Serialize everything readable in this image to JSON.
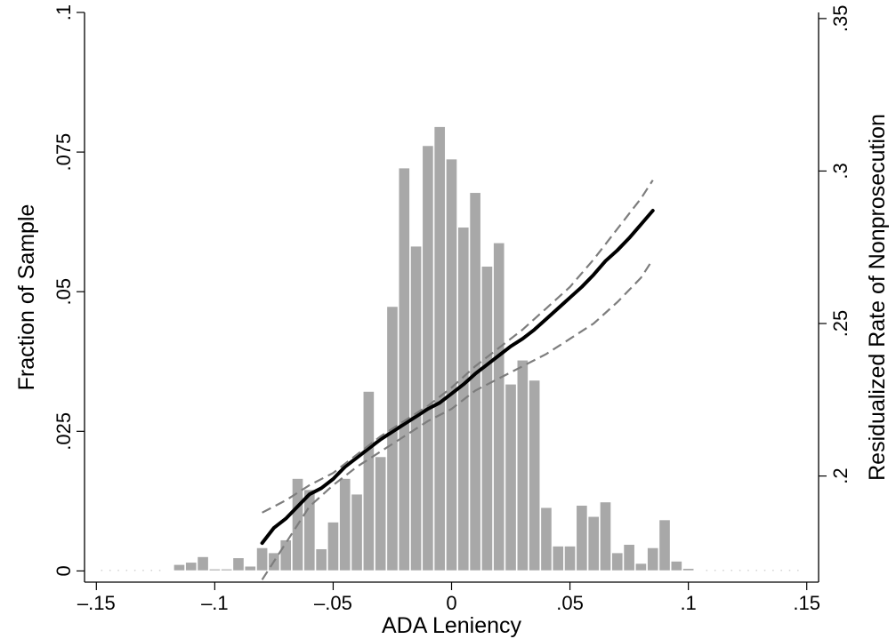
{
  "chart_data": {
    "type": "bar",
    "xlabel": "ADA Leniency",
    "ylabel": "Fraction of Sample",
    "y2label": "Residualized Rate of Nonprosecution",
    "xlim": [
      -0.155,
      0.155
    ],
    "ylim": [
      -0.002,
      0.1
    ],
    "y2lim": [
      0.1652,
      0.352
    ],
    "xticks": [
      {
        "value": -0.15,
        "label": "–.15"
      },
      {
        "value": -0.1,
        "label": "–.1"
      },
      {
        "value": -0.05,
        "label": "–.05"
      },
      {
        "value": 0,
        "label": "0"
      },
      {
        "value": 0.05,
        "label": ".05"
      },
      {
        "value": 0.1,
        "label": ".1"
      },
      {
        "value": 0.15,
        "label": ".15"
      }
    ],
    "yticks": [
      {
        "value": 0,
        "label": "0"
      },
      {
        "value": 0.025,
        "label": ".025"
      },
      {
        "value": 0.05,
        "label": ".05"
      },
      {
        "value": 0.075,
        "label": ".075"
      },
      {
        "value": 0.1,
        "label": ".1"
      }
    ],
    "y2ticks": [
      {
        "value": 0.2,
        "label": ".2"
      },
      {
        "value": 0.25,
        "label": ".25"
      },
      {
        "value": 0.3,
        "label": ".3"
      },
      {
        "value": 0.35,
        "label": ".35"
      }
    ],
    "grid": false,
    "histogram": {
      "bin_width": 0.0049,
      "x": [
        -0.115,
        -0.11,
        -0.105,
        -0.1,
        -0.095,
        -0.09,
        -0.085,
        -0.08,
        -0.075,
        -0.07,
        -0.065,
        -0.06,
        -0.055,
        -0.05,
        -0.045,
        -0.04,
        -0.035,
        -0.03,
        -0.025,
        -0.02,
        -0.015,
        -0.01,
        -0.005,
        0,
        0.005,
        0.01,
        0.015,
        0.02,
        0.025,
        0.03,
        0.035,
        0.04,
        0.045,
        0.05,
        0.055,
        0.06,
        0.065,
        0.07,
        0.075,
        0.08,
        0.085,
        0.09,
        0.095,
        0.1
      ],
      "values": [
        0.0012,
        0.0016,
        0.0026,
        0.0004,
        0.0004,
        0.0024,
        0.0009,
        0.0042,
        0.0033,
        0.0056,
        0.0166,
        0.0146,
        0.004,
        0.0088,
        0.0166,
        0.0138,
        0.0322,
        0.0205,
        0.0474,
        0.0722,
        0.0582,
        0.0762,
        0.0796,
        0.0738,
        0.0616,
        0.0678,
        0.0546,
        0.0588,
        0.0335,
        0.0378,
        0.0342,
        0.0114,
        0.0045,
        0.0045,
        0.0118,
        0.0098,
        0.0124,
        0.0033,
        0.0048,
        0.0014,
        0.0042,
        0.0092,
        0.0018,
        0.0005
      ]
    },
    "series": [
      {
        "axis": "right",
        "style": "solid",
        "x": [
          -0.08,
          -0.075,
          -0.07,
          -0.065,
          -0.06,
          -0.055,
          -0.05,
          -0.045,
          -0.04,
          -0.035,
          -0.03,
          -0.025,
          -0.02,
          -0.015,
          -0.01,
          -0.005,
          0,
          0.005,
          0.01,
          0.015,
          0.02,
          0.025,
          0.03,
          0.035,
          0.04,
          0.045,
          0.05,
          0.055,
          0.06,
          0.065,
          0.07,
          0.075,
          0.08,
          0.085
        ],
        "values": [
          0.178,
          0.183,
          0.186,
          0.19,
          0.194,
          0.196,
          0.199,
          0.203,
          0.206,
          0.209,
          0.212,
          0.2145,
          0.217,
          0.2195,
          0.222,
          0.224,
          0.227,
          0.23,
          0.2335,
          0.2365,
          0.2395,
          0.2425,
          0.245,
          0.248,
          0.2515,
          0.255,
          0.2585,
          0.262,
          0.266,
          0.2705,
          0.274,
          0.278,
          0.2825,
          0.287
        ]
      },
      {
        "axis": "right",
        "style": "dashed",
        "x": [
          -0.08,
          -0.07,
          -0.06,
          -0.05,
          -0.04,
          -0.03,
          -0.02,
          -0.01,
          0,
          0.01,
          0.02,
          0.03,
          0.04,
          0.05,
          0.06,
          0.07,
          0.08,
          0.085
        ],
        "values": [
          0.188,
          0.192,
          0.197,
          0.201,
          0.207,
          0.213,
          0.218,
          0.223,
          0.229,
          0.236,
          0.242,
          0.248,
          0.255,
          0.262,
          0.271,
          0.281,
          0.291,
          0.297
        ]
      },
      {
        "axis": "right",
        "style": "dashed",
        "x": [
          -0.08,
          -0.075,
          -0.07,
          -0.065,
          -0.06,
          -0.05,
          -0.04,
          -0.03,
          -0.02,
          -0.01,
          0,
          0.01,
          0.02,
          0.03,
          0.04,
          0.05,
          0.06,
          0.07,
          0.08,
          0.085
        ],
        "values": [
          0.166,
          0.172,
          0.178,
          0.184,
          0.19,
          0.197,
          0.203,
          0.208,
          0.213,
          0.218,
          0.222,
          0.228,
          0.232,
          0.236,
          0.24,
          0.245,
          0.25,
          0.257,
          0.265,
          0.271
        ]
      }
    ]
  }
}
